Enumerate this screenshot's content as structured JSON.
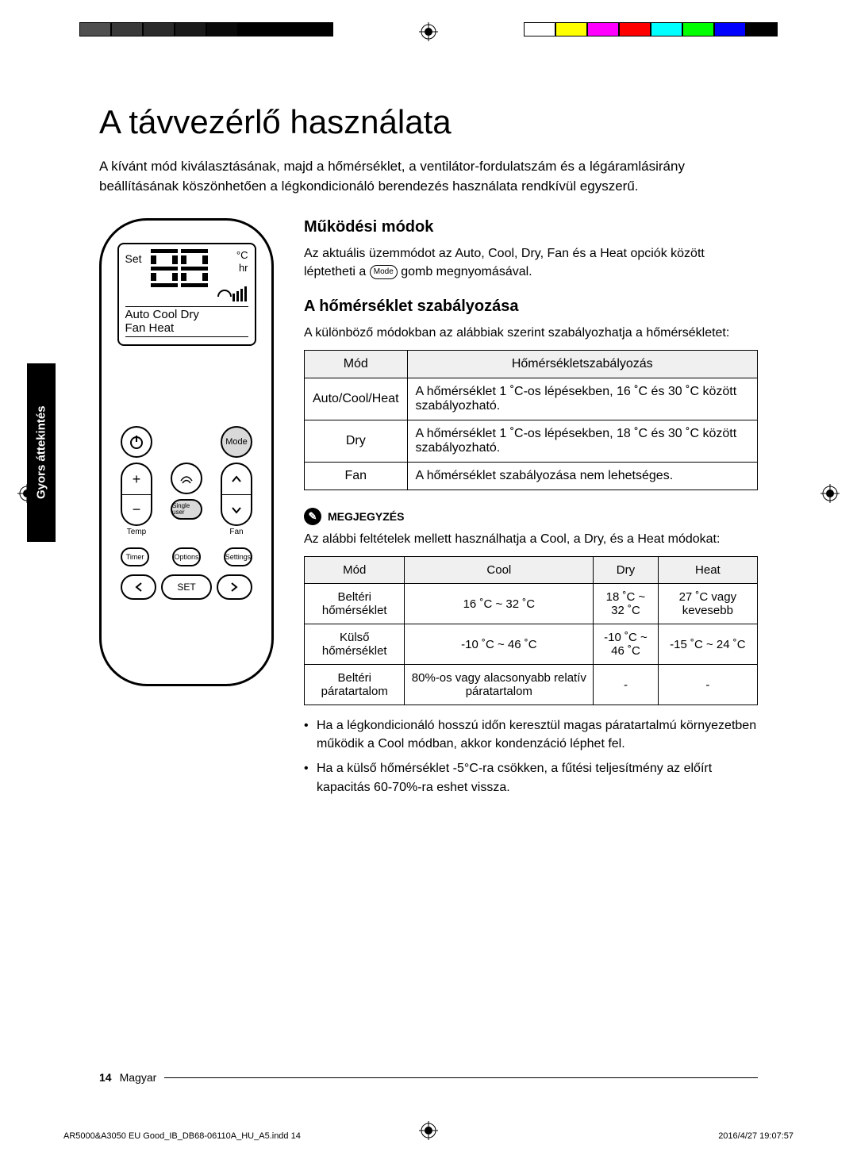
{
  "print": {
    "color_bar_left": [
      "#4f4f4f",
      "#3a3a3a",
      "#2a2a2a",
      "#1a1a1a",
      "#0a0a0a",
      "#000000",
      "#000000",
      "#000000"
    ],
    "color_bar_right": [
      "#ffffff",
      "#ffff00",
      "#ff00ff",
      "#ff0000",
      "#00ffff",
      "#00ff00",
      "#0000ff",
      "#000000"
    ],
    "footer_file": "AR5000&A3050 EU Good_IB_DB68-06110A_HU_A5.indd   14",
    "footer_time": "2016/4/27   19:07:57"
  },
  "side_tab": "Gyors áttekintés",
  "title": "A távvezérlő használata",
  "intro": "A kívánt mód kiválasztásának, majd a hőmérséklet, a ventilátor-fordulatszám és a légáramlásirány beállításának köszönhetően a légkondicionáló berendezés használata rendkívül egyszerű.",
  "remote": {
    "lcd_set": "Set",
    "lcd_unit_c": "°C",
    "lcd_unit_hr": "hr",
    "lcd_modes_line1": "Auto Cool Dry",
    "lcd_modes_line2": "Fan   Heat",
    "mode_btn": "Mode",
    "temp_lbl": "Temp",
    "fan_lbl": "Fan",
    "single_user": "Single user",
    "timer": "Timer",
    "options": "Options",
    "settings": "Settings",
    "set": "SET"
  },
  "sec1": {
    "h": "Működési módok",
    "p_before": "Az aktuális üzemmódot az Auto, Cool, Dry, Fan és a Heat opciók között léptetheti a ",
    "pill": "Mode",
    "p_after": " gomb megnyomásával."
  },
  "sec2": {
    "h": "A hőmérséklet szabályozása",
    "p": "A különböző módokban az alábbiak szerint szabályozhatja a hőmérsékletet:"
  },
  "table1": {
    "type": "table",
    "columns": [
      "Mód",
      "Hőmérsékletszabályozás"
    ],
    "rows": [
      [
        "Auto/Cool/Heat",
        "A hőmérséklet 1 ˚C-os lépésekben, 16 ˚C és 30 ˚C között szabályozható."
      ],
      [
        "Dry",
        "A hőmérséklet 1 ˚C-os lépésekben, 18 ˚C és 30 ˚C között szabályozható."
      ],
      [
        "Fan",
        "A hőmérséklet szabályozása nem lehetséges."
      ]
    ],
    "header_bg": "#f0f0f0",
    "border_color": "#000000",
    "fontsize": 16
  },
  "note": {
    "label": "MEGJEGYZÉS",
    "p": "Az alábbi feltételek mellett használhatja a Cool, a Dry, és a Heat módokat:"
  },
  "table2": {
    "type": "table",
    "columns": [
      "Mód",
      "Cool",
      "Dry",
      "Heat"
    ],
    "rows": [
      [
        "Beltéri hőmérséklet",
        "16 ˚C ~ 32 ˚C",
        "18 ˚C ~ 32 ˚C",
        "27 ˚C vagy kevesebb"
      ],
      [
        "Külső hőmérséklet",
        "-10 ˚C ~ 46 ˚C",
        "-10 ˚C ~ 46 ˚C",
        "-15 ˚C ~ 24 ˚C"
      ],
      [
        "Beltéri páratartalom",
        "80%-os vagy alacsonyabb relatív páratartalom",
        "-",
        "-"
      ]
    ],
    "header_bg": "#f0f0f0",
    "border_color": "#000000",
    "fontsize": 15
  },
  "bullets": [
    "Ha a légkondicionáló hosszú időn keresztül magas páratartalmú környezetben működik a Cool módban, akkor kondenzáció léphet fel.",
    "Ha a külső hőmérséklet -5°C-ra csökken, a fűtési teljesítmény az előírt kapacitás 60-70%-ra eshet vissza."
  ],
  "footer": {
    "page_num": "14",
    "lang": "Magyar"
  }
}
